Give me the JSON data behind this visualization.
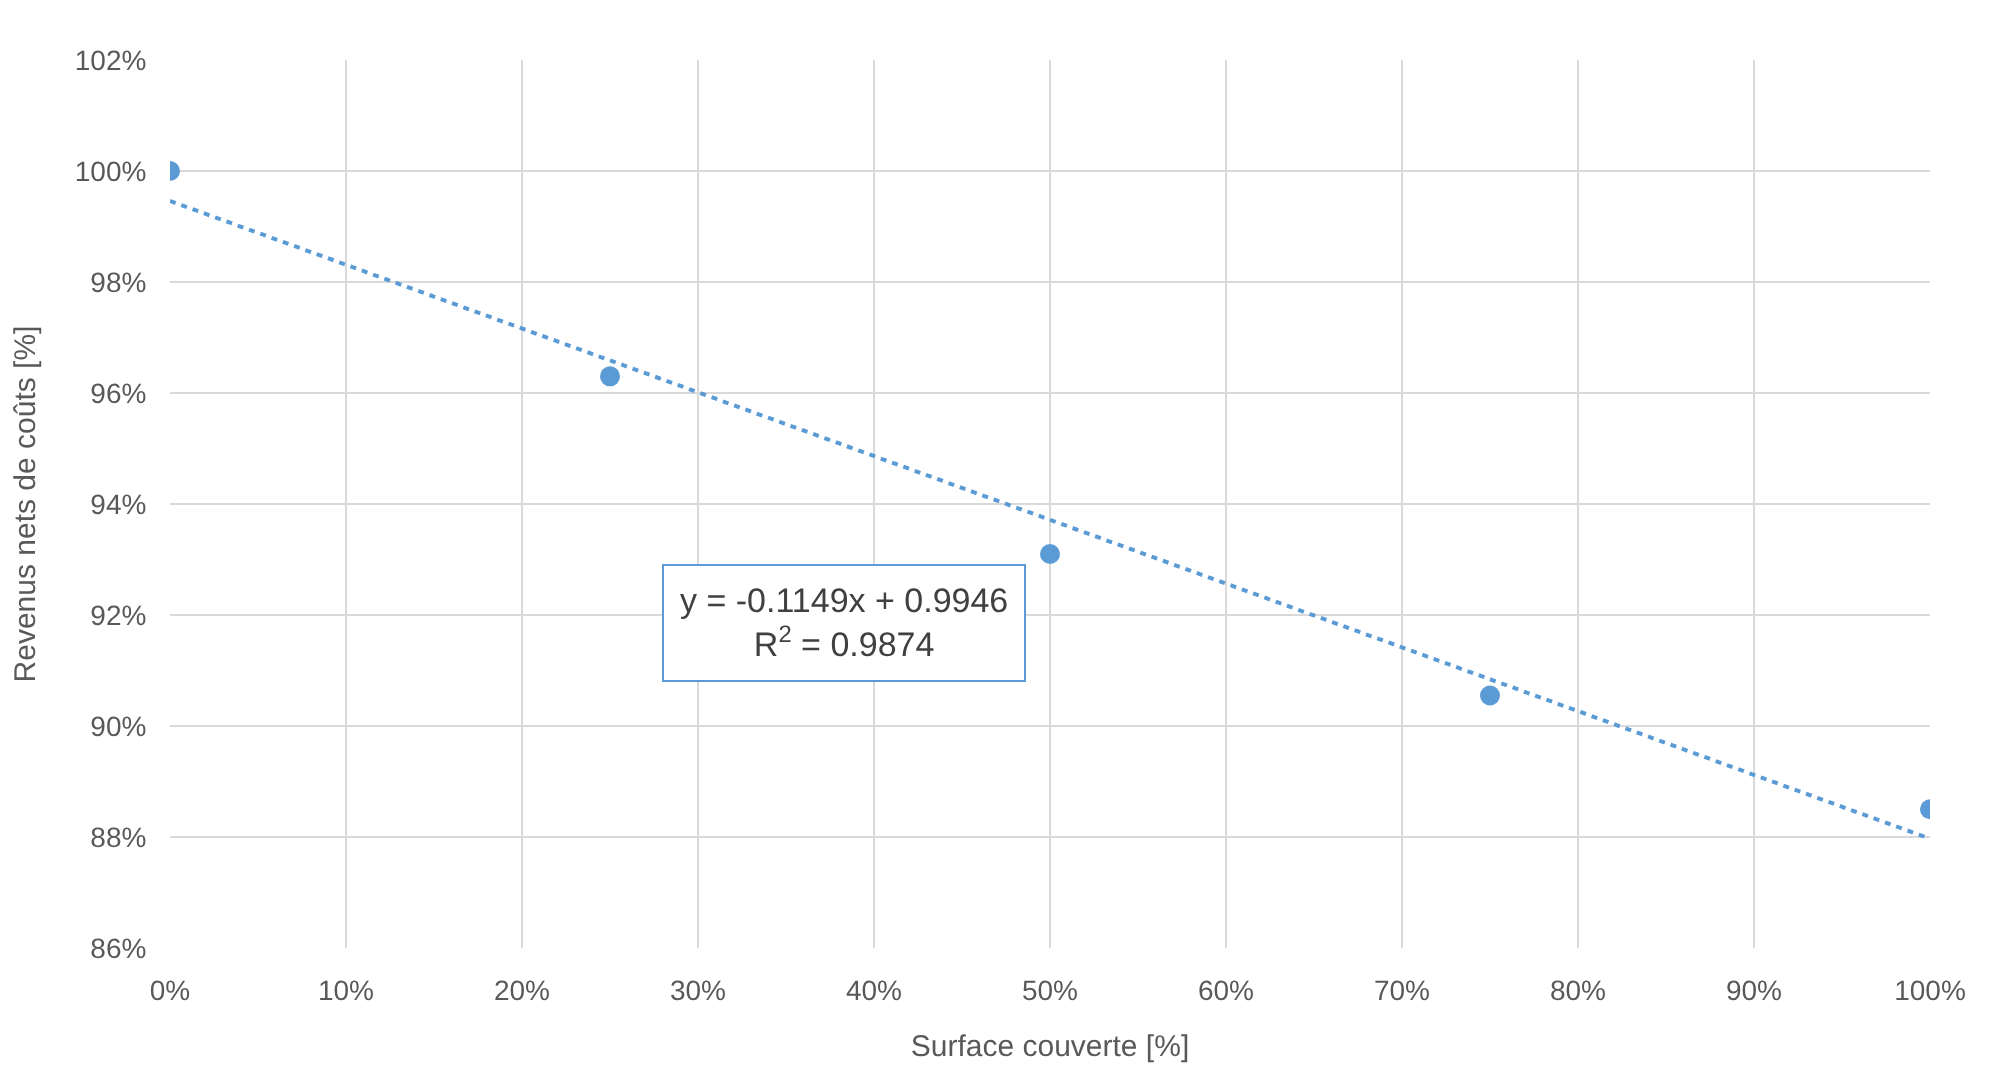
{
  "chart_data": {
    "type": "scatter",
    "xlabel": "Surface couverte [%]",
    "ylabel": "Revenus nets de coûts [%]",
    "series": [
      {
        "color": "#5b9bd5",
        "marker": "circle",
        "x": [
          0,
          25,
          50,
          75,
          100
        ],
        "values": [
          100.0,
          96.3,
          93.1,
          90.55,
          88.5
        ]
      },
      {
        "type": "line",
        "color": "#5b9bd5",
        "line_style": "dotted",
        "marker": "none",
        "x": [
          0,
          100
        ],
        "values": [
          99.46,
          87.97
        ]
      }
    ],
    "annotations": [
      "y = -0.1149x + 0.9946\nR$^{2}$ = 0.9874"
    ],
    "xlim": [
      0,
      100
    ],
    "ylim": [
      86,
      102
    ],
    "xticks": [
      {
        "value": 0,
        "label": "0%"
      },
      {
        "value": 10,
        "label": "10%"
      },
      {
        "value": 20,
        "label": "20%"
      },
      {
        "value": 30,
        "label": "30%"
      },
      {
        "value": 40,
        "label": "40%"
      },
      {
        "value": 50,
        "label": "50%"
      },
      {
        "value": 60,
        "label": "60%"
      },
      {
        "value": 70,
        "label": "70%"
      },
      {
        "value": 80,
        "label": "80%"
      },
      {
        "value": 90,
        "label": "90%"
      },
      {
        "value": 100,
        "label": "100%"
      }
    ],
    "yticks": [
      {
        "value": 86,
        "label": "86%"
      },
      {
        "value": 88,
        "label": "88%"
      },
      {
        "value": 90,
        "label": "90%"
      },
      {
        "value": 92,
        "label": "92%"
      },
      {
        "value": 94,
        "label": "94%"
      },
      {
        "value": 96,
        "label": "96%"
      },
      {
        "value": 98,
        "label": "98%"
      },
      {
        "value": 100,
        "label": "100%"
      },
      {
        "value": 102,
        "label": "102%"
      }
    ],
    "grid": true
  }
}
